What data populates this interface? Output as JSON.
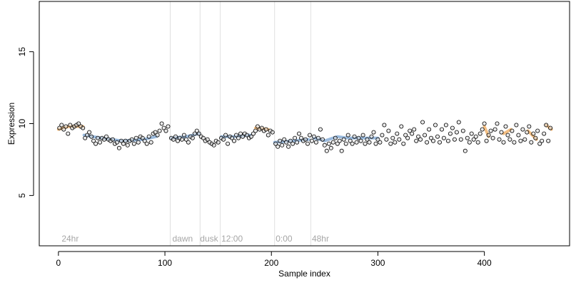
{
  "chart_data": {
    "type": "scatter",
    "xlabel": "Sample index",
    "ylabel": "Expression",
    "xlim": [
      -18,
      480
    ],
    "ylim": [
      1.5,
      18.5
    ],
    "x_ticks": [
      0,
      100,
      200,
      300,
      400
    ],
    "y_ticks": [
      5,
      10,
      15
    ],
    "grid": false,
    "vlines": [
      105,
      133,
      152,
      203,
      237
    ],
    "annotations": [
      {
        "x": 3,
        "y": 2,
        "text": "24hr"
      },
      {
        "x": 107,
        "y": 2,
        "text": "dawn"
      },
      {
        "x": 133,
        "y": 2,
        "text": "dusk"
      },
      {
        "x": 153,
        "y": 2,
        "text": "12:00"
      },
      {
        "x": 204,
        "y": 2,
        "text": "0:00"
      },
      {
        "x": 238,
        "y": 2,
        "text": "48hr"
      }
    ],
    "colors": {
      "point_stroke": "#000000",
      "point_fill_light": "#d9d9d9",
      "blue_trace": "#8fb3d9",
      "orange_trace": "#f2b774",
      "vline": "#e0e0e0",
      "annotation": "#a6a6a6"
    },
    "series": [
      {
        "values": [
          [
            1,
            9.7
          ],
          [
            3,
            9.9
          ],
          [
            5,
            9.6
          ],
          [
            7,
            9.8
          ],
          [
            9,
            9.3
          ],
          [
            11,
            9.9
          ],
          [
            13,
            9.7
          ],
          [
            15,
            9.8
          ],
          [
            17,
            9.9
          ],
          [
            19,
            10.0
          ],
          [
            21,
            9.8
          ],
          [
            23,
            9.7
          ],
          [
            25,
            9.0
          ],
          [
            27,
            9.2
          ],
          [
            29,
            9.4
          ],
          [
            31,
            9.1
          ],
          [
            33,
            8.8
          ],
          [
            35,
            8.6
          ],
          [
            37,
            9.0
          ],
          [
            39,
            8.7
          ],
          [
            41,
            9.0
          ],
          [
            43,
            8.9
          ],
          [
            45,
            9.1
          ],
          [
            47,
            8.9
          ],
          [
            49,
            8.8
          ],
          [
            51,
            8.9
          ],
          [
            53,
            8.6
          ],
          [
            55,
            8.7
          ],
          [
            57,
            8.3
          ],
          [
            59,
            8.8
          ],
          [
            61,
            8.6
          ],
          [
            63,
            8.8
          ],
          [
            65,
            8.5
          ],
          [
            67,
            8.8
          ],
          [
            69,
            8.9
          ],
          [
            71,
            8.6
          ],
          [
            73,
            9.0
          ],
          [
            75,
            8.7
          ],
          [
            77,
            9.1
          ],
          [
            79,
            9.0
          ],
          [
            81,
            8.8
          ],
          [
            83,
            8.6
          ],
          [
            85,
            9.1
          ],
          [
            87,
            8.7
          ],
          [
            89,
            9.3
          ],
          [
            91,
            9.4
          ],
          [
            93,
            9.2
          ],
          [
            95,
            9.5
          ],
          [
            97,
            10.0
          ],
          [
            99,
            9.7
          ],
          [
            101,
            9.5
          ],
          [
            103,
            9.8
          ],
          [
            106,
            9.0
          ],
          [
            108,
            8.9
          ],
          [
            110,
            9.1
          ],
          [
            112,
            8.8
          ],
          [
            114,
            9.0
          ],
          [
            116,
            8.9
          ],
          [
            118,
            9.2
          ],
          [
            120,
            8.9
          ],
          [
            122,
            8.7
          ],
          [
            124,
            9.1
          ],
          [
            126,
            9.0
          ],
          [
            128,
            9.3
          ],
          [
            130,
            9.5
          ],
          [
            132,
            9.3
          ],
          [
            134,
            9.1
          ],
          [
            136,
            9.0
          ],
          [
            138,
            8.8
          ],
          [
            140,
            8.9
          ],
          [
            142,
            8.7
          ],
          [
            144,
            8.6
          ],
          [
            146,
            8.5
          ],
          [
            148,
            8.8
          ],
          [
            150,
            8.7
          ],
          [
            153,
            9.0
          ],
          [
            155,
            8.9
          ],
          [
            157,
            9.2
          ],
          [
            159,
            8.6
          ],
          [
            161,
            9.1
          ],
          [
            163,
            9.0
          ],
          [
            165,
            8.8
          ],
          [
            167,
            9.2
          ],
          [
            169,
            9.0
          ],
          [
            171,
            9.3
          ],
          [
            173,
            9.1
          ],
          [
            175,
            9.3
          ],
          [
            177,
            9.2
          ],
          [
            179,
            9.0
          ],
          [
            181,
            9.1
          ],
          [
            183,
            9.3
          ],
          [
            185,
            9.5
          ],
          [
            187,
            9.8
          ],
          [
            189,
            9.6
          ],
          [
            191,
            9.7
          ],
          [
            193,
            9.5
          ],
          [
            195,
            9.6
          ],
          [
            197,
            9.2
          ],
          [
            199,
            9.5
          ],
          [
            201,
            9.4
          ],
          [
            204,
            8.6
          ],
          [
            206,
            8.4
          ],
          [
            208,
            8.8
          ],
          [
            210,
            8.5
          ],
          [
            212,
            8.9
          ],
          [
            214,
            8.7
          ],
          [
            216,
            8.4
          ],
          [
            218,
            8.8
          ],
          [
            220,
            8.6
          ],
          [
            222,
            9.0
          ],
          [
            224,
            8.7
          ],
          [
            226,
            9.3
          ],
          [
            228,
            9.0
          ],
          [
            230,
            8.8
          ],
          [
            232,
            8.9
          ],
          [
            234,
            8.6
          ],
          [
            236,
            9.2
          ],
          [
            238,
            8.8
          ],
          [
            240,
            9.1
          ],
          [
            242,
            8.7
          ],
          [
            244,
            9.0
          ],
          [
            246,
            9.6
          ],
          [
            248,
            8.9
          ],
          [
            250,
            8.5
          ],
          [
            252,
            8.1
          ],
          [
            254,
            8.6
          ],
          [
            256,
            8.3
          ],
          [
            258,
            8.7
          ],
          [
            260,
            9.0
          ],
          [
            262,
            8.6
          ],
          [
            264,
            8.8
          ],
          [
            266,
            8.1
          ],
          [
            268,
            8.9
          ],
          [
            270,
            8.6
          ],
          [
            272,
            9.2
          ],
          [
            274,
            8.8
          ],
          [
            276,
            8.6
          ],
          [
            278,
            9.1
          ],
          [
            280,
            8.7
          ],
          [
            282,
            9.0
          ],
          [
            284,
            8.8
          ],
          [
            286,
            9.2
          ],
          [
            288,
            8.6
          ],
          [
            290,
            8.9
          ],
          [
            292,
            8.7
          ],
          [
            294,
            9.1
          ],
          [
            296,
            9.4
          ],
          [
            298,
            8.6
          ],
          [
            300,
            8.9
          ],
          [
            302,
            8.7
          ],
          [
            304,
            9.2
          ],
          [
            306,
            9.9
          ],
          [
            308,
            8.9
          ],
          [
            310,
            9.5
          ],
          [
            312,
            8.6
          ],
          [
            314,
            9.0
          ],
          [
            316,
            8.7
          ],
          [
            318,
            9.3
          ],
          [
            320,
            8.9
          ],
          [
            322,
            9.8
          ],
          [
            324,
            8.6
          ],
          [
            326,
            9.2
          ],
          [
            328,
            9.0
          ],
          [
            330,
            9.5
          ],
          [
            332,
            9.3
          ],
          [
            334,
            9.6
          ],
          [
            336,
            8.8
          ],
          [
            338,
            9.1
          ],
          [
            340,
            8.9
          ],
          [
            342,
            10.1
          ],
          [
            344,
            9.2
          ],
          [
            346,
            8.7
          ],
          [
            348,
            9.6
          ],
          [
            350,
            9.0
          ],
          [
            352,
            8.8
          ],
          [
            354,
            9.9
          ],
          [
            356,
            9.1
          ],
          [
            358,
            8.7
          ],
          [
            360,
            9.6
          ],
          [
            362,
            9.0
          ],
          [
            364,
            9.9
          ],
          [
            366,
            8.8
          ],
          [
            368,
            9.3
          ],
          [
            370,
            9.7
          ],
          [
            372,
            8.9
          ],
          [
            374,
            9.4
          ],
          [
            376,
            10.1
          ],
          [
            378,
            8.9
          ],
          [
            380,
            9.5
          ],
          [
            382,
            8.1
          ],
          [
            384,
            9.0
          ],
          [
            386,
            8.7
          ],
          [
            388,
            9.3
          ],
          [
            390,
            8.9
          ],
          [
            392,
            9.1
          ],
          [
            394,
            8.7
          ],
          [
            396,
            9.3
          ],
          [
            398,
            9.6
          ],
          [
            400,
            10.0
          ],
          [
            402,
            8.8
          ],
          [
            404,
            9.2
          ],
          [
            406,
            9.5
          ],
          [
            408,
            9.0
          ],
          [
            410,
            9.6
          ],
          [
            412,
            10.0
          ],
          [
            414,
            8.9
          ],
          [
            416,
            9.4
          ],
          [
            418,
            8.7
          ],
          [
            420,
            9.8
          ],
          [
            422,
            9.2
          ],
          [
            424,
            8.9
          ],
          [
            426,
            9.5
          ],
          [
            428,
            8.7
          ],
          [
            430,
            9.9
          ],
          [
            432,
            9.2
          ],
          [
            434,
            8.8
          ],
          [
            436,
            9.6
          ],
          [
            438,
            8.9
          ],
          [
            440,
            9.4
          ],
          [
            442,
            9.8
          ],
          [
            444,
            8.7
          ],
          [
            446,
            9.3
          ],
          [
            448,
            9.0
          ],
          [
            450,
            9.5
          ],
          [
            452,
            8.6
          ],
          [
            454,
            8.8
          ],
          [
            456,
            9.3
          ],
          [
            458,
            9.9
          ],
          [
            460,
            8.8
          ],
          [
            462,
            9.7
          ]
        ]
      }
    ],
    "traces": [
      {
        "color_key": "orange_trace",
        "segments": [
          [
            [
              0,
              9.6
            ],
            [
              10,
              9.8
            ],
            [
              23,
              9.8
            ]
          ],
          [
            [
              185,
              9.7
            ],
            [
              197,
              9.6
            ]
          ],
          [
            [
              400,
              9.8
            ],
            [
              404,
              9.1
            ]
          ],
          [
            [
              418,
              9.3
            ],
            [
              425,
              9.6
            ]
          ],
          [
            [
              441,
              9.5
            ],
            [
              449,
              8.9
            ]
          ],
          [
            [
              458,
              9.9
            ],
            [
              463,
              9.6
            ]
          ]
        ]
      },
      {
        "color_key": "blue_trace",
        "segments": [
          [
            [
              24,
              9.2
            ],
            [
              40,
              9.0
            ],
            [
              60,
              8.8
            ],
            [
              80,
              8.9
            ],
            [
              92,
              9.1
            ]
          ],
          [
            [
              106,
              9.0
            ],
            [
              120,
              9.1
            ],
            [
              132,
              9.3
            ]
          ],
          [
            [
              153,
              9.1
            ],
            [
              165,
              9.1
            ],
            [
              180,
              9.2
            ]
          ],
          [
            [
              203,
              8.7
            ],
            [
              220,
              8.8
            ],
            [
              235,
              8.9
            ]
          ],
          [
            [
              240,
              9.0
            ],
            [
              250,
              8.8
            ],
            [
              262,
              9.1
            ],
            [
              272,
              9.0
            ],
            [
              285,
              9.0
            ],
            [
              300,
              9.0
            ]
          ]
        ]
      }
    ]
  }
}
